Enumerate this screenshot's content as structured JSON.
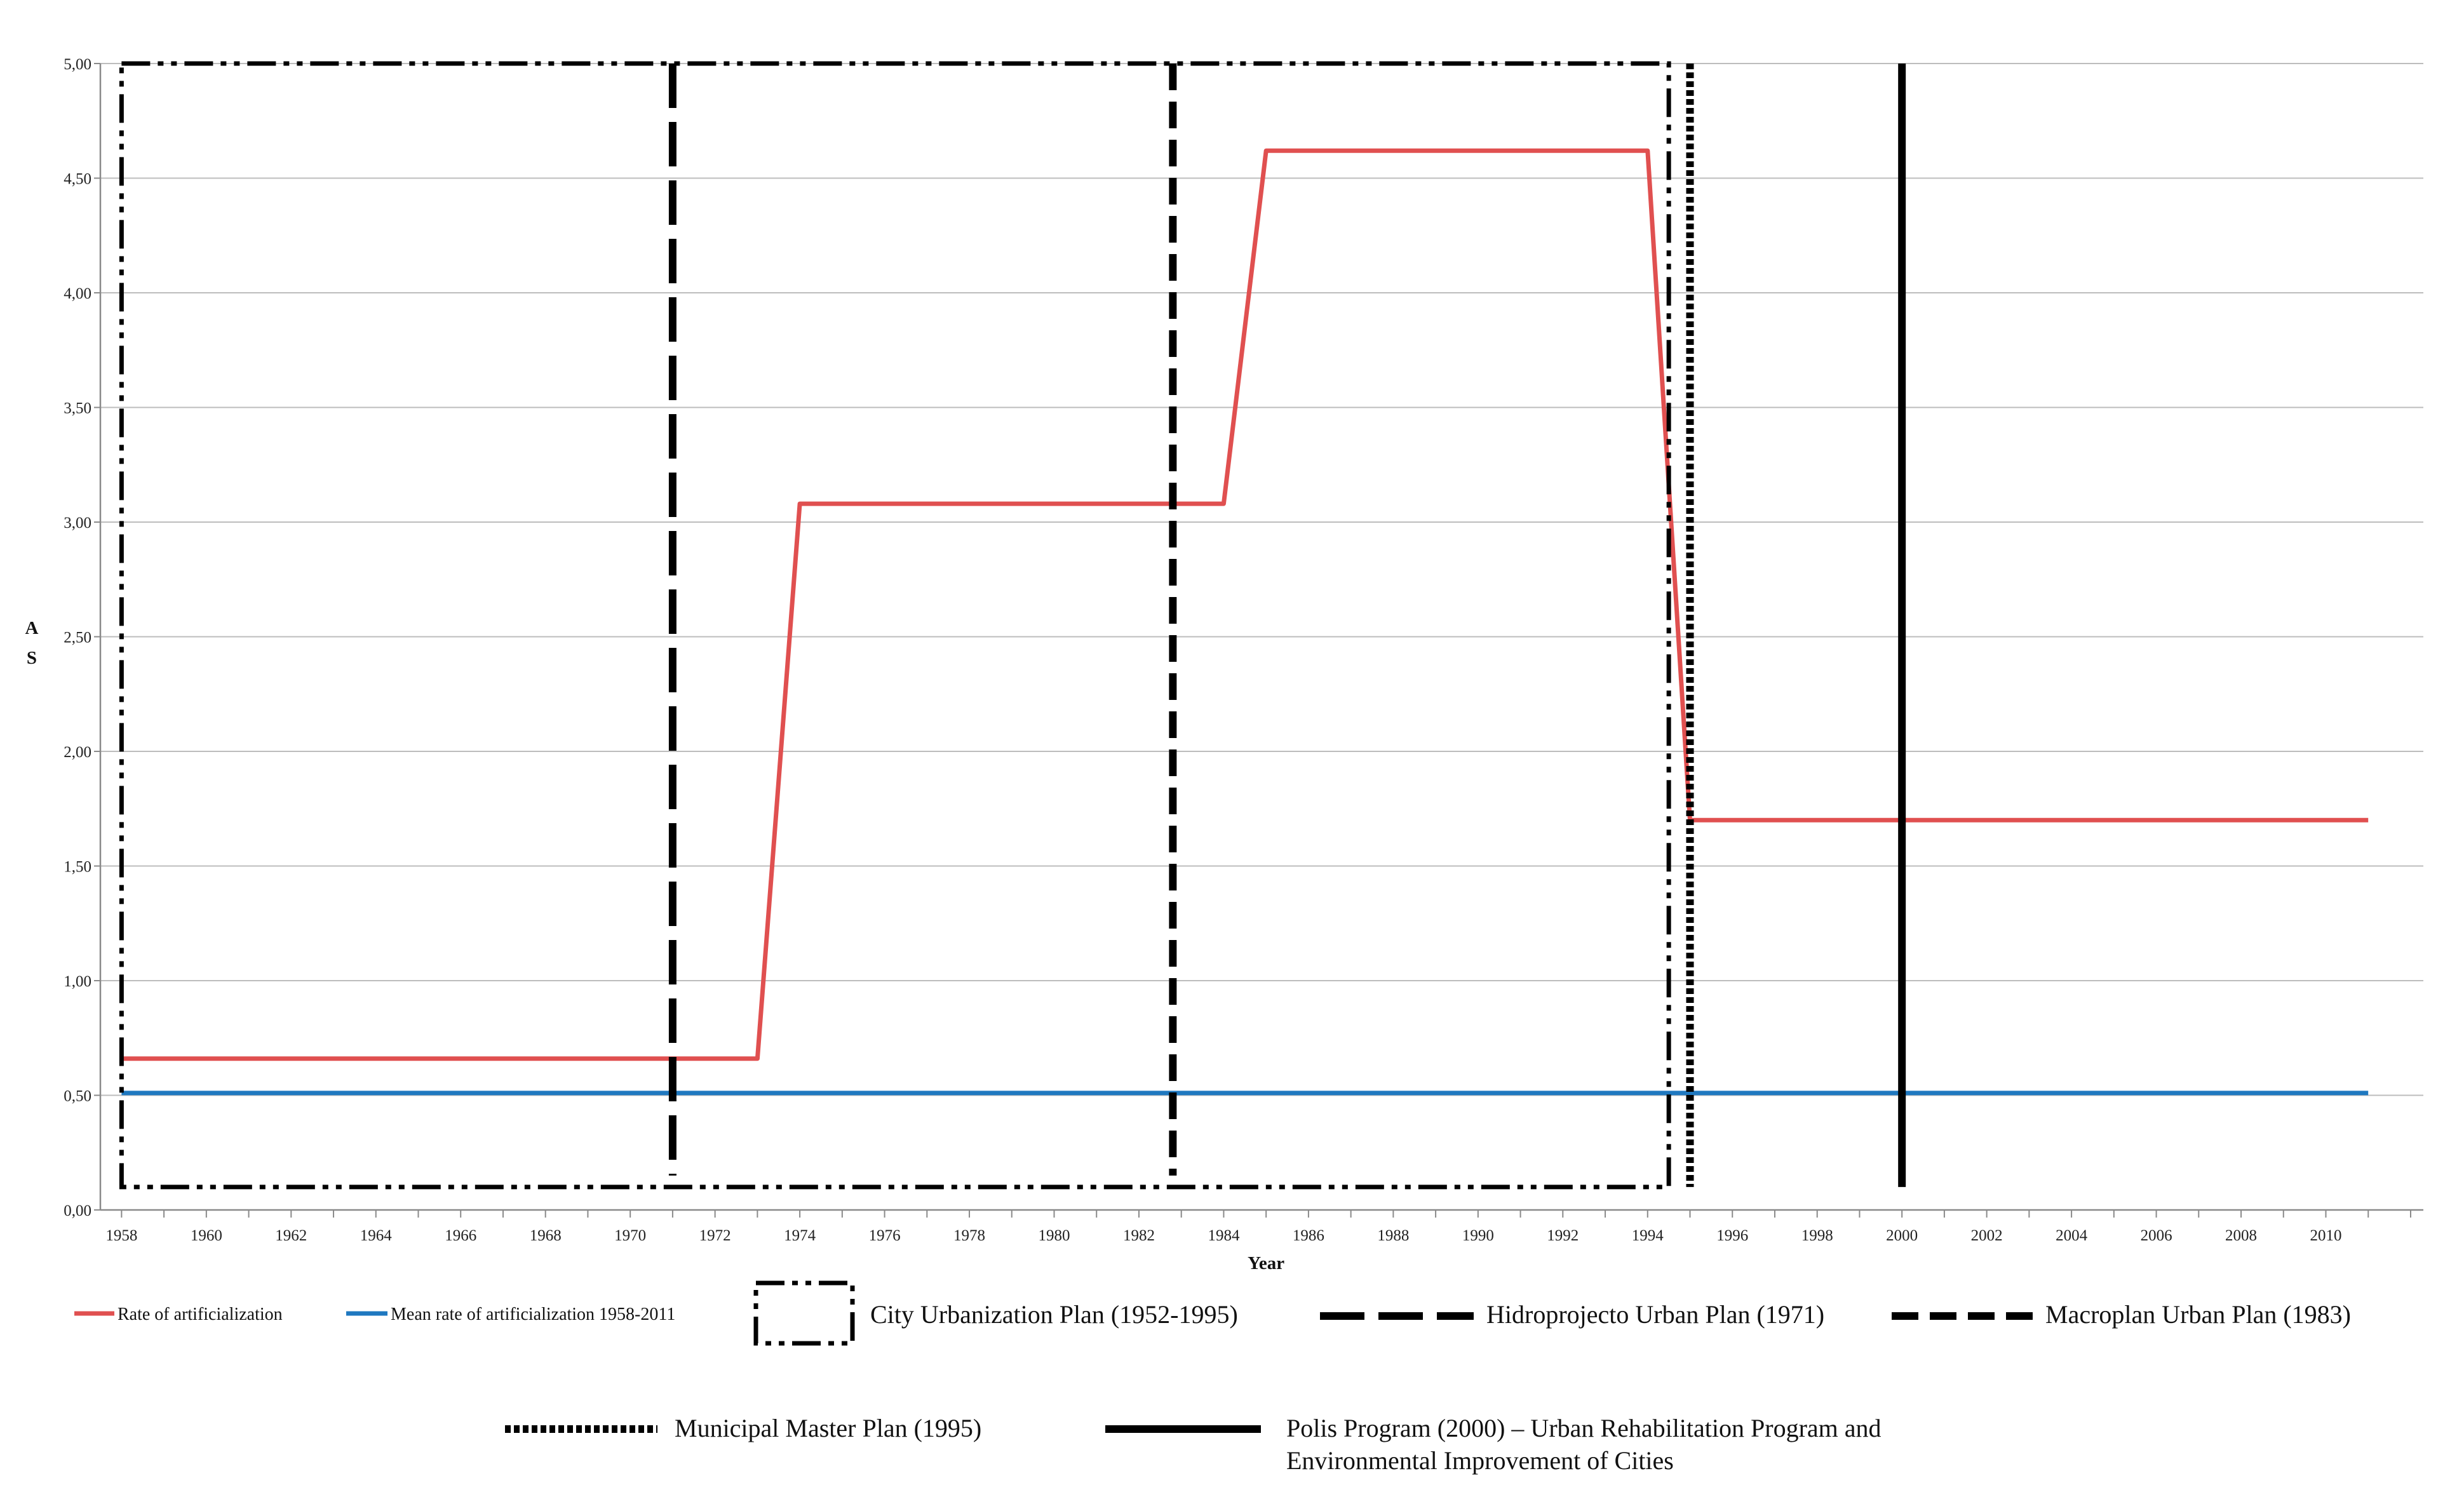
{
  "chart_data": {
    "type": "line",
    "title": "",
    "xlabel": "Year",
    "ylabel": [
      "A",
      "S"
    ],
    "xlim": [
      1957.5,
      2012.3
    ],
    "ylim": [
      0,
      5
    ],
    "x_ticks": [
      "1958",
      "1960",
      "1962",
      "1964",
      "1966",
      "1968",
      "1970",
      "1972",
      "1974",
      "1976",
      "1978",
      "1980",
      "1982",
      "1984",
      "1986",
      "1988",
      "1990",
      "1992",
      "1994",
      "1996",
      "1998",
      "2000",
      "2002",
      "2004",
      "2006",
      "2008",
      "2010"
    ],
    "y_ticks": [
      "0,00",
      "0,50",
      "1,00",
      "1,50",
      "2,00",
      "2,50",
      "3,00",
      "3,50",
      "4,00",
      "4,50",
      "5,00"
    ],
    "grid": true,
    "legend_position": "bottom",
    "series": [
      {
        "name": "Rate of artificialization",
        "color": "#e05050",
        "points": [
          [
            1958,
            0.66
          ],
          [
            1973,
            0.66
          ],
          [
            1974,
            3.08
          ],
          [
            1984,
            3.08
          ],
          [
            1985,
            4.62
          ],
          [
            1994,
            4.62
          ],
          [
            1995,
            1.7
          ],
          [
            2011,
            1.7
          ]
        ]
      },
      {
        "name": "Mean rate of artificialization 1958-2011",
        "color": "#1f78c0",
        "points": [
          [
            1958,
            0.51
          ],
          [
            2011,
            0.51
          ]
        ]
      }
    ],
    "plans": [
      {
        "name": "City Urbanization Plan (1952-1995)",
        "style": "dash-dot-dot",
        "shape": "box",
        "x_start": 1958,
        "x_end": 1994.5,
        "y_bottom": 0.1,
        "y_top": 5.0
      },
      {
        "name": "Hidroprojecto Urban Plan (1971)",
        "style": "long-dash",
        "shape": "vline",
        "x": 1971,
        "y_bottom": 0.15,
        "y_top": 5.0
      },
      {
        "name": "Macroplan Urban Plan (1983)",
        "style": "dash",
        "shape": "vline",
        "x": 1982.8,
        "y_bottom": 0.15,
        "y_top": 5.0
      },
      {
        "name": "Municipal Master Plan (1995)",
        "style": "dotted",
        "shape": "vline",
        "x": 1995,
        "y_bottom": 0.1,
        "y_top": 5.0
      },
      {
        "name": "Polis Program (2000) – Urban Rehabilitation Program and Environmental Improvement of Cities",
        "label_lines": [
          "Polis Program (2000) – Urban Rehabilitation Program and",
          "Environmental Improvement of Cities"
        ],
        "style": "solid",
        "shape": "vline",
        "x": 2000,
        "y_bottom": 0.1,
        "y_top": 5.0
      }
    ]
  }
}
